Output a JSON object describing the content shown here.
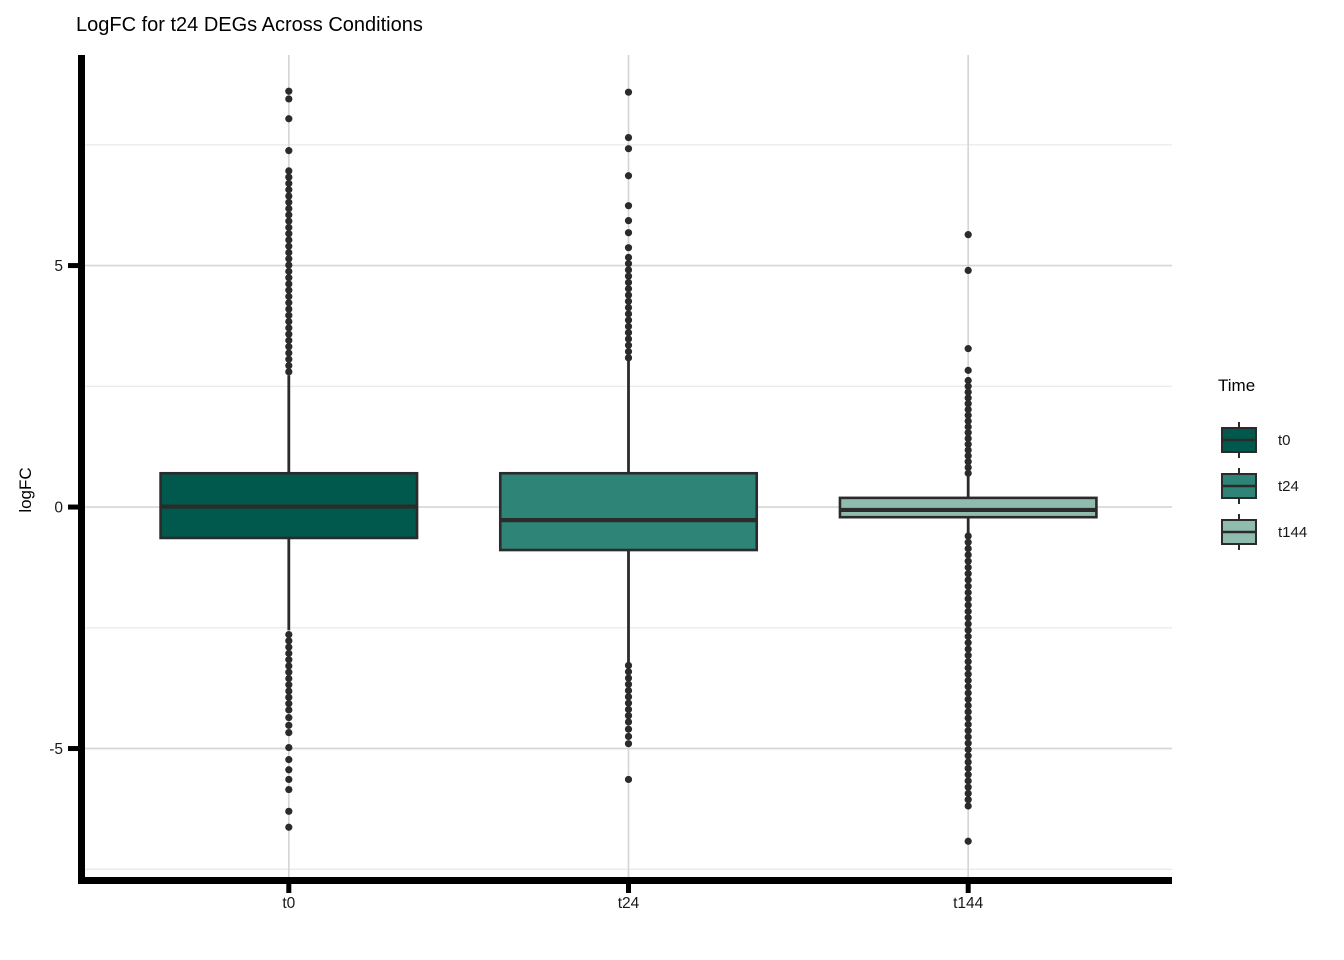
{
  "chart_data": {
    "type": "boxplot",
    "title": "LogFC for t24 DEGs Across Conditions",
    "xlabel": "",
    "ylabel": "logFC",
    "categories": [
      "t0",
      "t24",
      "t144"
    ],
    "ylim": [
      -7.66,
      9.36
    ],
    "yticks": [
      -5,
      0,
      5
    ],
    "ytick_labels": [
      "-5",
      "0",
      "5"
    ],
    "y_minor_gridlines": [
      -7.5,
      -2.5,
      2.5,
      7.5
    ],
    "grid": "horizontal major+minor, vertical major at categories",
    "legend": {
      "title": "Time",
      "position": "right",
      "entries": [
        {
          "label": "t0",
          "color": "#00594C"
        },
        {
          "label": "t24",
          "color": "#2E8476"
        },
        {
          "label": "t144",
          "color": "#8FBCAE"
        }
      ]
    },
    "style": {
      "box_stroke_color": "#2B2B2B",
      "axis_color": "#000000",
      "tick_label_color": "#1A1A1A",
      "major_grid_color": "#D6D6D6",
      "minor_grid_color": "#E8E8E8"
    },
    "series": [
      {
        "name": "t0",
        "fill": "#00594C",
        "q1": -0.64,
        "median": 0.01,
        "q3": 0.7,
        "whisker_low": -2.55,
        "whisker_high": 2.73,
        "outliers_high": [
          8.61,
          8.45,
          8.04,
          7.38,
          6.96,
          6.83,
          6.7,
          6.57,
          6.44,
          6.31,
          6.18,
          6.05,
          5.92,
          5.79,
          5.66,
          5.53,
          5.4,
          5.27,
          5.14,
          5.01,
          4.88,
          4.75,
          4.62,
          4.49,
          4.36,
          4.23,
          4.1,
          3.97,
          3.84,
          3.71,
          3.58,
          3.45,
          3.32,
          3.19,
          3.06,
          2.93,
          2.8
        ],
        "outliers_low": [
          -2.64,
          -2.77,
          -2.9,
          -3.03,
          -3.16,
          -3.29,
          -3.42,
          -3.55,
          -3.68,
          -3.81,
          -3.94,
          -4.07,
          -4.2,
          -4.36,
          -4.52,
          -4.67,
          -4.98,
          -5.23,
          -5.44,
          -5.64,
          -5.85,
          -6.3,
          -6.63
        ]
      },
      {
        "name": "t24",
        "fill": "#2E8476",
        "q1": -0.89,
        "median": -0.27,
        "q3": 0.7,
        "whisker_low": -3.23,
        "whisker_high": 3.04,
        "outliers_high": [
          8.59,
          7.65,
          7.42,
          6.86,
          6.24,
          5.93,
          5.68,
          5.37,
          5.17,
          5.04,
          4.91,
          4.78,
          4.65,
          4.52,
          4.39,
          4.26,
          4.13,
          4.0,
          3.87,
          3.74,
          3.61,
          3.48,
          3.35,
          3.22,
          3.09
        ],
        "outliers_low": [
          -3.28,
          -3.41,
          -3.54,
          -3.67,
          -3.8,
          -3.93,
          -4.06,
          -4.19,
          -4.32,
          -4.45,
          -4.6,
          -4.75,
          -4.9,
          -5.64
        ]
      },
      {
        "name": "t144",
        "fill": "#8FBCAE",
        "q1": -0.21,
        "median": -0.06,
        "q3": 0.19,
        "whisker_low": -0.58,
        "whisker_high": 0.66,
        "outliers_high": [
          5.64,
          4.9,
          3.28,
          2.83,
          2.62,
          2.5,
          2.38,
          2.26,
          2.14,
          2.02,
          1.9,
          1.78,
          1.66,
          1.54,
          1.42,
          1.3,
          1.18,
          1.06,
          0.94,
          0.82,
          0.7
        ],
        "outliers_low": [
          -0.6,
          -0.73,
          -0.86,
          -0.99,
          -1.12,
          -1.25,
          -1.38,
          -1.51,
          -1.64,
          -1.77,
          -1.9,
          -2.03,
          -2.16,
          -2.29,
          -2.42,
          -2.55,
          -2.68,
          -2.81,
          -2.94,
          -3.07,
          -3.2,
          -3.33,
          -3.46,
          -3.59,
          -3.72,
          -3.85,
          -3.98,
          -4.11,
          -4.24,
          -4.37,
          -4.5,
          -4.63,
          -4.76,
          -4.89,
          -5.02,
          -5.15,
          -5.28,
          -5.41,
          -5.54,
          -5.67,
          -5.8,
          -5.93,
          -6.06,
          -6.19,
          -6.92
        ]
      }
    ]
  }
}
